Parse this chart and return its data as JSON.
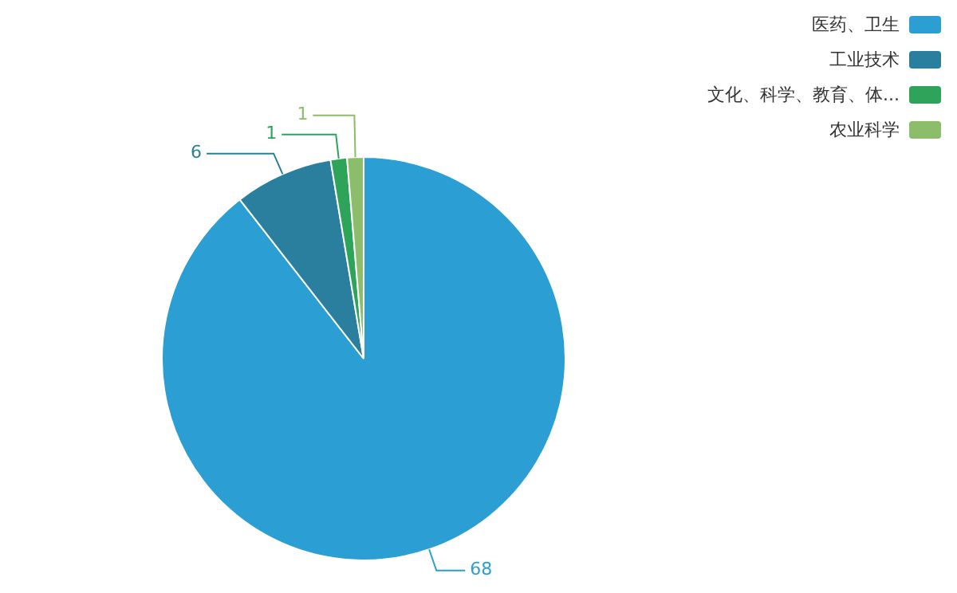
{
  "chart_data": {
    "type": "pie",
    "categories": [
      "医药、卫生",
      "工业技术",
      "文化、科学、教育、体...",
      "农业科学"
    ],
    "values": [
      68,
      6,
      1,
      1
    ],
    "colors": [
      "#2b9ed4",
      "#2a7f9e",
      "#2ea35a",
      "#8cbd6a"
    ],
    "data_labels": true,
    "legend": "top right"
  }
}
